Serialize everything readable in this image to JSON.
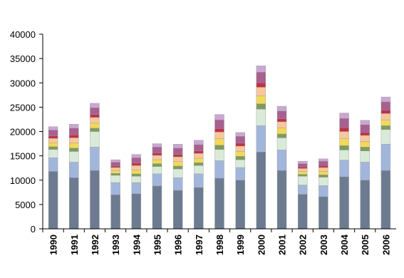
{
  "chart_data": {
    "type": "stacked-bar",
    "categories": [
      "1990",
      "1991",
      "1992",
      "1993",
      "1994",
      "1995",
      "1996",
      "1997",
      "1998",
      "1999",
      "2000",
      "2001",
      "2002",
      "2003",
      "2004",
      "2005",
      "2006"
    ],
    "series": [
      {
        "color": "#6d7b91",
        "values": [
          11800,
          10500,
          12000,
          7000,
          7200,
          8800,
          7900,
          8500,
          10400,
          10000,
          15800,
          12000,
          7100,
          6600,
          10700,
          10000,
          12000
        ]
      },
      {
        "color": "#a2b6dc",
        "values": [
          2800,
          3200,
          4800,
          2500,
          2300,
          2500,
          2600,
          2800,
          3600,
          2600,
          5400,
          4200,
          1900,
          2300,
          3400,
          3700,
          5400
        ]
      },
      {
        "color": "#d9ead9",
        "values": [
          1700,
          2200,
          3200,
          1500,
          1300,
          1500,
          1800,
          1700,
          2300,
          1600,
          3400,
          2500,
          1800,
          1700,
          2100,
          2300,
          3000
        ]
      },
      {
        "color": "#7f9a5e",
        "values": [
          600,
          700,
          700,
          400,
          500,
          600,
          600,
          600,
          900,
          700,
          1100,
          800,
          400,
          500,
          900,
          800,
          800
        ]
      },
      {
        "color": "#f2d95a",
        "values": [
          800,
          1000,
          1000,
          600,
          800,
          800,
          900,
          900,
          1300,
          1000,
          1600,
          1200,
          600,
          700,
          1400,
          1100,
          1200
        ]
      },
      {
        "color": "#f6c89a",
        "values": [
          900,
          1100,
          1200,
          600,
          900,
          900,
          1000,
          1000,
          1400,
          1100,
          1800,
          1300,
          600,
          800,
          1500,
          1300,
          1300
        ]
      },
      {
        "color": "#c0304a",
        "values": [
          500,
          600,
          600,
          300,
          500,
          500,
          500,
          500,
          700,
          600,
          900,
          600,
          300,
          400,
          800,
          600,
          700
        ]
      },
      {
        "color": "#a8608f",
        "values": [
          1200,
          1400,
          1400,
          800,
          1100,
          1200,
          1300,
          1300,
          1800,
          1400,
          2200,
          1600,
          700,
          900,
          1900,
          1600,
          1700
        ]
      },
      {
        "color": "#c9a7d2",
        "values": [
          700,
          800,
          900,
          500,
          700,
          700,
          800,
          900,
          1100,
          800,
          1300,
          1000,
          500,
          500,
          1100,
          900,
          1000
        ]
      }
    ],
    "ylim": [
      0,
      40000
    ],
    "yticks": [
      0,
      5000,
      10000,
      15000,
      20000,
      25000,
      30000,
      35000,
      40000
    ],
    "grid": false
  }
}
